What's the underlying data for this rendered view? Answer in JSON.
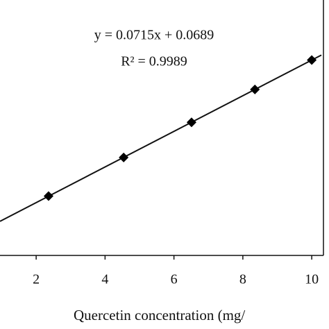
{
  "chart_data": {
    "type": "scatter",
    "x_label": "Quercetin concentration (mg/",
    "annotations": [
      "y = 0.0715x + 0.0689",
      "R² = 0.9989"
    ],
    "x": [
      2.36,
      4.54,
      6.51,
      8.35,
      10.0
    ],
    "values": [
      0.238,
      0.393,
      0.534,
      0.666,
      0.784
    ],
    "color": "#000000",
    "trendline": {
      "slope": 0.0715,
      "intercept": 0.0689
    },
    "xlim": [
      0.95,
      10.34
    ],
    "ylim": [
      0,
      1.025
    ],
    "xticks": [
      2,
      4,
      6,
      8,
      10
    ]
  }
}
